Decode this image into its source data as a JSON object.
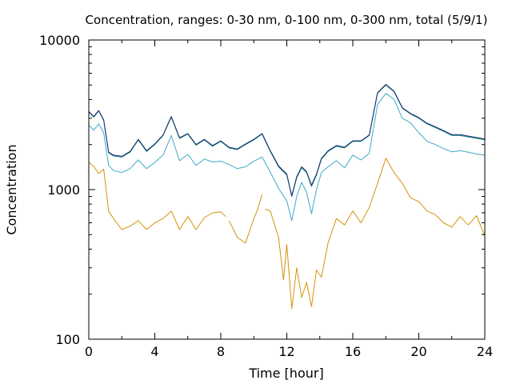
{
  "chart_data": {
    "type": "line",
    "title": "Concentration, ranges: 0-30 nm, 0-100 nm, 0-300 nm, total (5/9/1)",
    "xlabel": "Time [hour]",
    "ylabel": "Concentration",
    "xlim": [
      0,
      24
    ],
    "ylim": [
      100,
      10000
    ],
    "yscale": "log",
    "grid": false,
    "legend": "none",
    "x_ticks": [
      0,
      4,
      8,
      12,
      16,
      20,
      24
    ],
    "y_ticks": [
      100,
      1000,
      10000
    ],
    "x_tick_labels": [
      "0",
      "4",
      "8",
      "12",
      "16",
      "20",
      "24"
    ],
    "y_tick_labels": [
      "100",
      "1000",
      "10000"
    ],
    "series": [
      {
        "color": "#d4940a",
        "x": [
          0,
          0.3,
          0.6,
          0.9,
          1.2,
          1.5,
          2,
          2.5,
          3,
          3.5,
          4,
          4.5,
          5,
          5.5,
          6,
          6.5,
          7,
          7.5,
          8,
          8.3,
          null,
          8.5,
          9,
          9.5,
          10,
          10.2,
          10.5,
          null,
          10.7,
          11,
          11.5,
          11.8,
          12,
          12.3,
          12.6,
          12.9,
          13.2,
          13.5,
          13.8,
          14.1,
          14.5,
          15,
          15.5,
          16,
          16.5,
          17,
          17.5,
          18,
          18.5,
          19,
          19.5,
          20,
          20.5,
          21,
          21.5,
          22,
          22.5,
          23,
          23.5,
          24
        ],
        "y": [
          1520,
          1430,
          1280,
          1370,
          720,
          640,
          540,
          570,
          620,
          540,
          600,
          640,
          720,
          540,
          660,
          540,
          650,
          700,
          710,
          660,
          null,
          620,
          480,
          440,
          640,
          720,
          930,
          null,
          740,
          720,
          480,
          250,
          430,
          160,
          300,
          190,
          240,
          165,
          290,
          260,
          440,
          640,
          580,
          720,
          600,
          760,
          1100,
          1620,
          1300,
          1100,
          880,
          830,
          720,
          680,
          600,
          560,
          660,
          580,
          670,
          490
        ]
      },
      {
        "color": "#3fa8c8",
        "x": [
          0,
          0.3,
          0.6,
          0.9,
          1.2,
          1.5,
          2,
          2.5,
          3,
          3.5,
          4,
          4.5,
          5,
          5.5,
          6,
          6.5,
          7,
          7.5,
          8,
          8.5,
          9,
          9.5,
          10,
          10.5,
          11,
          11.5,
          12,
          12.3,
          12.6,
          12.9,
          13.2,
          13.5,
          13.8,
          14.1,
          14.5,
          15,
          15.5,
          16,
          16.5,
          17,
          17.5,
          18,
          18.5,
          19,
          19.5,
          20,
          20.5,
          21,
          21.5,
          22,
          22.5,
          23,
          23.5,
          24
        ],
        "y": [
          2700,
          2500,
          2750,
          2400,
          1450,
          1340,
          1300,
          1380,
          1580,
          1380,
          1520,
          1700,
          2300,
          1560,
          1720,
          1450,
          1600,
          1530,
          1550,
          1470,
          1380,
          1420,
          1550,
          1650,
          1310,
          1020,
          840,
          620,
          900,
          1120,
          960,
          690,
          1000,
          1300,
          1420,
          1560,
          1400,
          1700,
          1580,
          1750,
          3700,
          4400,
          4000,
          3000,
          2800,
          2400,
          2100,
          2000,
          1880,
          1790,
          1820,
          1780,
          1730,
          1700
        ]
      },
      {
        "color": "#0d8a8a",
        "x": [
          0,
          0.3,
          0.6,
          0.9,
          1.2,
          1.5,
          2,
          2.5,
          3,
          3.5,
          4,
          4.5,
          5,
          5.5,
          6,
          6.5,
          7,
          7.5,
          8,
          8.5,
          9,
          9.5,
          10,
          10.5,
          11,
          11.5,
          12,
          12.3,
          12.6,
          12.9,
          13.2,
          13.5,
          13.8,
          14.1,
          14.5,
          15,
          15.5,
          16,
          16.5,
          17,
          17.5,
          18,
          18.5,
          19,
          19.5,
          20,
          20.5,
          21,
          21.5,
          22,
          22.5,
          23,
          23.5,
          24
        ],
        "y": [
          3300,
          3050,
          3350,
          2900,
          1760,
          1680,
          1650,
          1780,
          2150,
          1800,
          2000,
          2300,
          3050,
          2200,
          2350,
          1980,
          2150,
          1950,
          2100,
          1900,
          1850,
          2000,
          2150,
          2350,
          1800,
          1420,
          1250,
          900,
          1200,
          1400,
          1300,
          1050,
          1250,
          1600,
          1800,
          1950,
          1900,
          2100,
          2100,
          2300,
          4400,
          5000,
          4500,
          3500,
          3200,
          3000,
          2750,
          2600,
          2450,
          2300,
          2300,
          2250,
          2200,
          2150
        ]
      },
      {
        "color": "#1a2d6e",
        "x": [
          0,
          0.3,
          0.6,
          0.9,
          1.2,
          1.5,
          2,
          2.5,
          3,
          3.5,
          4,
          4.5,
          5,
          5.5,
          6,
          6.5,
          7,
          7.5,
          8,
          8.5,
          9,
          9.5,
          10,
          10.5,
          11,
          11.5,
          12,
          12.3,
          12.6,
          12.9,
          13.2,
          13.5,
          13.8,
          14.1,
          14.5,
          15,
          15.5,
          16,
          16.5,
          17,
          17.5,
          18,
          18.5,
          19,
          19.5,
          20,
          20.5,
          21,
          21.5,
          22,
          22.5,
          23,
          23.5,
          24
        ],
        "y": [
          3330,
          3080,
          3380,
          2930,
          1780,
          1700,
          1670,
          1800,
          2170,
          1820,
          2020,
          2320,
          3080,
          2220,
          2370,
          2000,
          2170,
          1970,
          2120,
          1920,
          1870,
          2020,
          2170,
          2370,
          1820,
          1440,
          1270,
          910,
          1220,
          1420,
          1320,
          1070,
          1270,
          1620,
          1820,
          1970,
          1920,
          2120,
          2120,
          2320,
          4450,
          5050,
          4550,
          3530,
          3230,
          3030,
          2780,
          2630,
          2480,
          2330,
          2330,
          2280,
          2230,
          2180
        ]
      }
    ]
  }
}
